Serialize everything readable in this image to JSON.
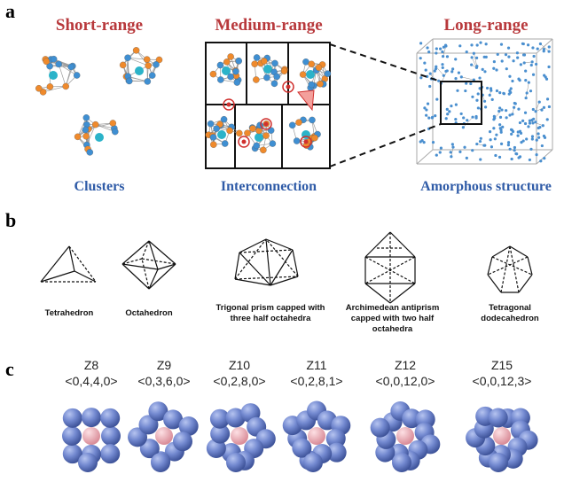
{
  "panels": [
    {
      "label": "a",
      "columns": [
        {
          "title": "Short-range",
          "caption": "Clusters"
        },
        {
          "title": "Medium-range",
          "caption": "Interconnection"
        },
        {
          "title": "Long-range",
          "caption": "Amorphous structure"
        }
      ]
    },
    {
      "label": "b",
      "shapes": [
        "Tetrahedron",
        "Octahedron",
        "Trigonal prism capped with three half octahedra",
        "Archimedean antiprism capped with two half octahedra",
        "Tetragonal dodecahedron"
      ]
    },
    {
      "label": "c",
      "clusters": [
        {
          "name": "Z8",
          "index": "<0,4,4,0>"
        },
        {
          "name": "Z9",
          "index": "<0,3,6,0>"
        },
        {
          "name": "Z10",
          "index": "<0,2,8,0>"
        },
        {
          "name": "Z11",
          "index": "<0,2,8,1>"
        },
        {
          "name": "Z12",
          "index": "<0,0,12,0>"
        },
        {
          "name": "Z15",
          "index": "<0,0,12,3>"
        }
      ]
    }
  ]
}
